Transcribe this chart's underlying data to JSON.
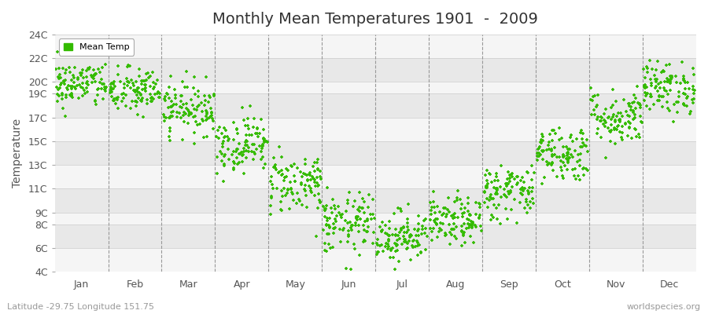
{
  "title": "Monthly Mean Temperatures 1901  -  2009",
  "ylabel": "Temperature",
  "subtitle_left": "Latitude -29.75 Longitude 151.75",
  "subtitle_right": "worldspecies.org",
  "ytick_labels": [
    "4C",
    "6C",
    "8C",
    "9C",
    "11C",
    "13C",
    "15C",
    "17C",
    "19C",
    "20C",
    "22C",
    "24C"
  ],
  "ytick_values": [
    4,
    6,
    8,
    9,
    11,
    13,
    15,
    17,
    19,
    20,
    22,
    24
  ],
  "month_labels": [
    "Jan",
    "Feb",
    "Mar",
    "Apr",
    "May",
    "Jun",
    "Jul",
    "Aug",
    "Sep",
    "Oct",
    "Nov",
    "Dec"
  ],
  "dot_color": "#33bb00",
  "dot_size": 5,
  "background_color": "#ffffff",
  "band_colors": [
    "#f5f5f5",
    "#e8e8e8"
  ],
  "n_years": 109,
  "monthly_mean": [
    19.8,
    19.2,
    17.8,
    14.8,
    11.5,
    8.0,
    7.0,
    8.2,
    10.8,
    14.0,
    17.0,
    19.5
  ],
  "monthly_std": [
    1.0,
    1.0,
    1.1,
    1.2,
    1.3,
    1.3,
    1.1,
    1.0,
    1.2,
    1.2,
    1.2,
    1.1
  ]
}
